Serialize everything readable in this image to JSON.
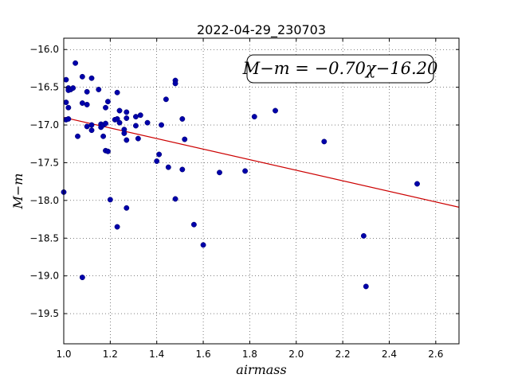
{
  "chart_data": {
    "type": "scatter",
    "title": "2022-04-29_230703",
    "xlabel": "airmass",
    "ylabel": "M−m",
    "annotation": "M−m = −0.70χ−16.20",
    "xlim": [
      1.0,
      2.7
    ],
    "ylim": [
      -19.9,
      -15.85
    ],
    "y_inverted": true,
    "xticks": [
      1.0,
      1.2,
      1.4,
      1.6,
      1.8,
      2.0,
      2.2,
      2.4,
      2.6
    ],
    "xtick_labels": [
      "1.0",
      "1.2",
      "1.4",
      "1.6",
      "1.8",
      "2.0",
      "2.2",
      "2.4",
      "2.6"
    ],
    "yticks": [
      -16.0,
      -16.5,
      -17.0,
      -17.5,
      -18.0,
      -18.5,
      -19.0,
      -19.5
    ],
    "ytick_labels": [
      "−16.0",
      "−16.5",
      "−17.0",
      "−17.5",
      "−18.0",
      "−18.5",
      "−19.0",
      "−19.5"
    ],
    "grid": true,
    "point_color": "#0000aa",
    "fit_color": "#cc0000",
    "fit": {
      "slope": -0.7,
      "intercept": -16.2
    },
    "points": [
      [
        1.0,
        -17.89
      ],
      [
        1.01,
        -16.7
      ],
      [
        1.01,
        -16.93
      ],
      [
        1.02,
        -16.92
      ],
      [
        1.01,
        -16.4
      ],
      [
        1.02,
        -16.51
      ],
      [
        1.02,
        -16.54
      ],
      [
        1.03,
        -16.53
      ],
      [
        1.04,
        -16.51
      ],
      [
        1.02,
        -16.77
      ],
      [
        1.05,
        -16.18
      ],
      [
        1.06,
        -17.15
      ],
      [
        1.08,
        -16.36
      ],
      [
        1.08,
        -16.71
      ],
      [
        1.1,
        -16.73
      ],
      [
        1.1,
        -16.56
      ],
      [
        1.1,
        -17.02
      ],
      [
        1.08,
        -19.02
      ],
      [
        1.12,
        -16.38
      ],
      [
        1.12,
        -17.0
      ],
      [
        1.12,
        -17.07
      ],
      [
        1.15,
        -16.53
      ],
      [
        1.16,
        -16.99
      ],
      [
        1.16,
        -17.03
      ],
      [
        1.17,
        -17.0
      ],
      [
        1.18,
        -16.98
      ],
      [
        1.17,
        -17.15
      ],
      [
        1.18,
        -16.77
      ],
      [
        1.19,
        -16.69
      ],
      [
        1.18,
        -17.34
      ],
      [
        1.19,
        -17.35
      ],
      [
        1.2,
        -17.99
      ],
      [
        1.22,
        -16.93
      ],
      [
        1.23,
        -16.92
      ],
      [
        1.23,
        -16.57
      ],
      [
        1.24,
        -16.81
      ],
      [
        1.24,
        -16.97
      ],
      [
        1.26,
        -17.06
      ],
      [
        1.26,
        -17.11
      ],
      [
        1.27,
        -16.83
      ],
      [
        1.27,
        -16.91
      ],
      [
        1.27,
        -17.2
      ],
      [
        1.27,
        -18.1
      ],
      [
        1.23,
        -18.35
      ],
      [
        1.31,
        -16.89
      ],
      [
        1.31,
        -17.01
      ],
      [
        1.32,
        -17.18
      ],
      [
        1.33,
        -16.87
      ],
      [
        1.36,
        -16.97
      ],
      [
        1.4,
        -17.48
      ],
      [
        1.41,
        -17.39
      ],
      [
        1.42,
        -17.0
      ],
      [
        1.44,
        -16.66
      ],
      [
        1.45,
        -17.56
      ],
      [
        1.48,
        -16.41
      ],
      [
        1.48,
        -16.45
      ],
      [
        1.48,
        -17.98
      ],
      [
        1.51,
        -16.92
      ],
      [
        1.51,
        -17.59
      ],
      [
        1.52,
        -17.19
      ],
      [
        1.56,
        -18.32
      ],
      [
        1.6,
        -18.59
      ],
      [
        1.67,
        -17.63
      ],
      [
        1.78,
        -17.61
      ],
      [
        1.82,
        -16.89
      ],
      [
        1.91,
        -16.81
      ],
      [
        2.12,
        -17.22
      ],
      [
        2.29,
        -18.47
      ],
      [
        2.3,
        -19.14
      ],
      [
        2.52,
        -17.78
      ]
    ]
  }
}
